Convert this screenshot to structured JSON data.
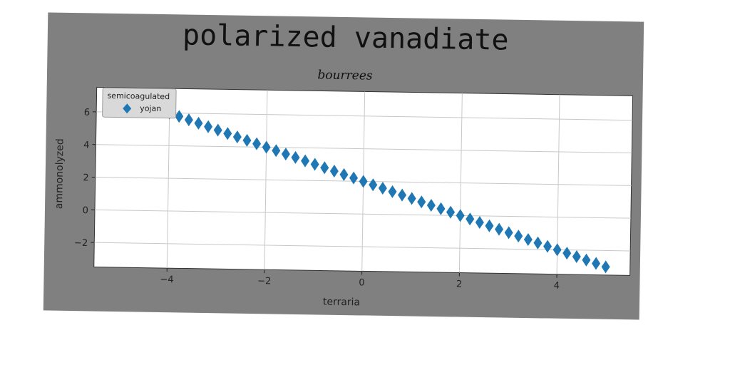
{
  "chart_data": {
    "type": "scatter",
    "title": "polarized vanadiate",
    "subtitle": "bourrees",
    "xlabel": "terraria",
    "ylabel": "ammonolyzed",
    "xlim": [
      -5.5,
      5.5
    ],
    "ylim": [
      -3.5,
      7.5
    ],
    "xticks": [
      -4,
      -2,
      0,
      2,
      4
    ],
    "yticks": [
      -2,
      0,
      2,
      4,
      6
    ],
    "grid": true,
    "legend": {
      "title": "semicoagulated",
      "position": "top-left",
      "entries": [
        "yojan"
      ]
    },
    "series": [
      {
        "name": "yojan",
        "marker": "diamond",
        "color": "#1f77b4",
        "x": [
          -5.0,
          -4.8,
          -4.6,
          -4.4,
          -4.2,
          -4.0,
          -3.8,
          -3.6,
          -3.4,
          -3.2,
          -3.0,
          -2.8,
          -2.6,
          -2.4,
          -2.2,
          -2.0,
          -1.8,
          -1.6,
          -1.4,
          -1.2,
          -1.0,
          -0.8,
          -0.6,
          -0.4,
          -0.2,
          0.0,
          0.2,
          0.4,
          0.6,
          0.8,
          1.0,
          1.2,
          1.4,
          1.6,
          1.8,
          2.0,
          2.2,
          2.4,
          2.6,
          2.8,
          3.0,
          3.2,
          3.4,
          3.6,
          3.8,
          4.0,
          4.2,
          4.4,
          4.6,
          4.8,
          5.0
        ],
        "y": [
          7.0,
          6.8,
          6.6,
          6.4,
          6.2,
          6.0,
          5.8,
          5.6,
          5.4,
          5.2,
          5.0,
          4.8,
          4.6,
          4.4,
          4.2,
          4.0,
          3.8,
          3.6,
          3.4,
          3.2,
          3.0,
          2.8,
          2.6,
          2.4,
          2.2,
          2.0,
          1.8,
          1.6,
          1.4,
          1.2,
          1.0,
          0.8,
          0.6,
          0.4,
          0.2,
          0.0,
          -0.2,
          -0.4,
          -0.6,
          -0.8,
          -1.0,
          -1.2,
          -1.4,
          -1.6,
          -1.8,
          -2.0,
          -2.2,
          -2.4,
          -2.6,
          -2.8,
          -3.0
        ]
      }
    ]
  }
}
